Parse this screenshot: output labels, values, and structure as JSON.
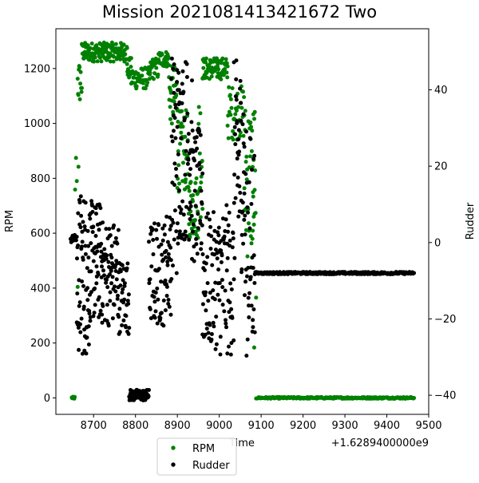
{
  "chart_data": {
    "type": "scatter",
    "title": "Mission 2021081413421672 Two",
    "xlabel": "Time",
    "x_offset_label": "+1.6289400000e9",
    "ylabel_left": "RPM",
    "ylabel_right": "Rudder",
    "xlim": [
      8610,
      9500
    ],
    "ylim_left": [
      -60,
      1345
    ],
    "ylim_right": [
      -45,
      56
    ],
    "xticks": [
      8700,
      8800,
      8900,
      9000,
      9100,
      9200,
      9300,
      9400,
      9500
    ],
    "yticks_left": [
      0,
      200,
      400,
      600,
      800,
      1000,
      1200
    ],
    "yticks_right": [
      -40,
      -20,
      0,
      20,
      40
    ],
    "grid": false,
    "legend_position": "bottom-left, below axes",
    "series": [
      {
        "name": "RPM",
        "axis": "left",
        "color": "#008000",
        "segments": [
          {
            "x0": 8648,
            "x1": 8655,
            "n": 8,
            "y": 0,
            "spread": 4
          },
          {
            "x0": 8656,
            "x1": 8666,
            "n": 6,
            "y": 560,
            "spread": 480
          },
          {
            "x0": 8662,
            "x1": 8672,
            "n": 12,
            "y": 1150,
            "spread": 80
          },
          {
            "x0": 8672,
            "x1": 8780,
            "n": 140,
            "y": 1260,
            "spread": 35
          },
          {
            "x0": 8780,
            "x1": 8790,
            "n": 14,
            "y": 1200,
            "spread": 40
          },
          {
            "x0": 8790,
            "x1": 8835,
            "n": 50,
            "y": 1165,
            "spread": 40
          },
          {
            "x0": 8835,
            "x1": 8855,
            "n": 20,
            "y": 1200,
            "spread": 40
          },
          {
            "x0": 8855,
            "x1": 8880,
            "n": 30,
            "y": 1235,
            "spread": 30
          },
          {
            "x0": 8880,
            "x1": 8900,
            "n": 30,
            "y": 1100,
            "spread": 110
          },
          {
            "x0": 8900,
            "x1": 8925,
            "n": 35,
            "y": 900,
            "spread": 150
          },
          {
            "x0": 8925,
            "x1": 8950,
            "n": 35,
            "y": 700,
            "spread": 120
          },
          {
            "x0": 8950,
            "x1": 8960,
            "n": 15,
            "y": 900,
            "spread": 250
          },
          {
            "x0": 8960,
            "x1": 9020,
            "n": 80,
            "y": 1200,
            "spread": 40
          },
          {
            "x0": 9020,
            "x1": 9060,
            "n": 40,
            "y": 1040,
            "spread": 100
          },
          {
            "x0": 9060,
            "x1": 9085,
            "n": 35,
            "y": 800,
            "spread": 300
          },
          {
            "x0": 9080,
            "x1": 9088,
            "n": 8,
            "y": 500,
            "spread": 330
          },
          {
            "x0": 9088,
            "x1": 9465,
            "n": 260,
            "y": 0,
            "spread": 3
          }
        ]
      },
      {
        "name": "Rudder",
        "axis": "right",
        "color": "#000000",
        "segments": [
          {
            "x0": 8645,
            "x1": 8660,
            "n": 10,
            "y": 1,
            "spread": 1
          },
          {
            "x0": 8660,
            "x1": 8690,
            "n": 60,
            "y": -8,
            "spread": 22
          },
          {
            "x0": 8690,
            "x1": 8720,
            "n": 60,
            "y": -5,
            "spread": 16
          },
          {
            "x0": 8720,
            "x1": 8760,
            "n": 70,
            "y": -8,
            "spread": 14
          },
          {
            "x0": 8760,
            "x1": 8785,
            "n": 35,
            "y": -14,
            "spread": 10
          },
          {
            "x0": 8785,
            "x1": 8832,
            "n": 60,
            "y": -40,
            "spread": 1.5
          },
          {
            "x0": 8832,
            "x1": 8870,
            "n": 55,
            "y": -8,
            "spread": 14
          },
          {
            "x0": 8870,
            "x1": 8885,
            "n": 25,
            "y": -5,
            "spread": 14
          },
          {
            "x0": 8885,
            "x1": 8905,
            "n": 40,
            "y": 20,
            "spread": 30
          },
          {
            "x0": 8905,
            "x1": 8935,
            "n": 50,
            "y": 25,
            "spread": 25
          },
          {
            "x0": 8935,
            "x1": 8960,
            "n": 40,
            "y": 12,
            "spread": 18
          },
          {
            "x0": 8960,
            "x1": 9000,
            "n": 60,
            "y": -10,
            "spread": 18
          },
          {
            "x0": 9000,
            "x1": 9035,
            "n": 55,
            "y": -10,
            "spread": 20
          },
          {
            "x0": 9035,
            "x1": 9060,
            "n": 45,
            "y": 20,
            "spread": 28
          },
          {
            "x0": 9060,
            "x1": 9085,
            "n": 40,
            "y": 0,
            "spread": 30
          },
          {
            "x0": 9085,
            "x1": 9465,
            "n": 300,
            "y": -8,
            "spread": 0.3
          }
        ]
      }
    ]
  }
}
